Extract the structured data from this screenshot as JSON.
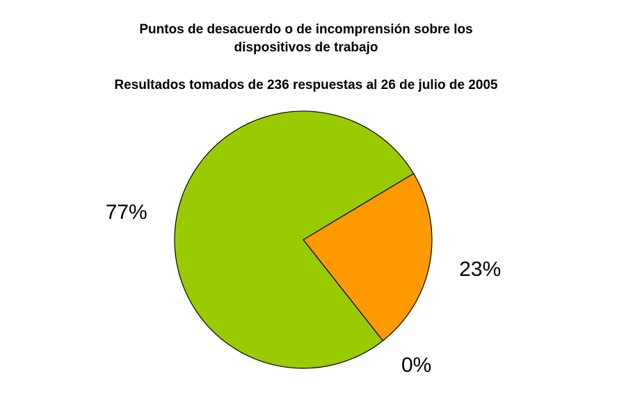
{
  "chart_data": {
    "type": "pie",
    "title_lines": [
      "Puntos de desacuerdo o de incomprensión sobre los",
      "dispositivos de trabajo"
    ],
    "subtitle": "Resultados tomados de 236 respuestas al 26 de julio de 2005",
    "slices": [
      {
        "label": "23%",
        "value": 23,
        "color": "#ff9900"
      },
      {
        "label": "0%",
        "value": 0,
        "color": "#66cc00"
      },
      {
        "label": "77%",
        "value": 77,
        "color": "#99cc00"
      }
    ],
    "start_angle_deg": 31,
    "direction": "clockwise",
    "legend": "none"
  }
}
